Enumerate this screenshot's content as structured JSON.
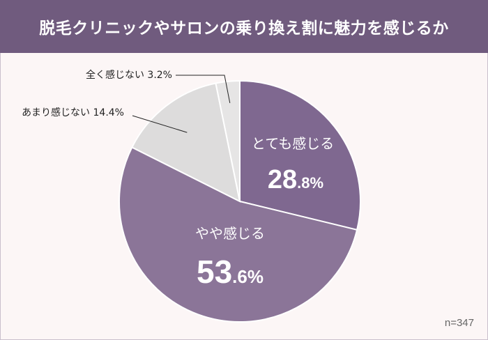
{
  "chart_data": {
    "type": "pie",
    "title": "脱毛クリニックやサロンの乗り換え割に魅力を感じるか",
    "slices": [
      {
        "label": "とても感じる",
        "value": 28.8,
        "int_part": "28",
        "dec_part": ".8%",
        "color": "#7f6890",
        "label_color": "#ffffff",
        "text": "28.8%"
      },
      {
        "label": "やや感じる",
        "value": 53.6,
        "int_part": "53",
        "dec_part": ".6%",
        "color": "#8b7598",
        "label_color": "#ffffff",
        "text": "53.6%"
      },
      {
        "label": "あまり感じない",
        "value": 14.4,
        "color": "#dddcdc",
        "label_color": "#222222",
        "text": "あまり感じない 14.4%"
      },
      {
        "label": "全く感じない",
        "value": 3.2,
        "color": "#e6e5e5",
        "label_color": "#222222",
        "text": "全く感じない 3.2%"
      }
    ],
    "sample_size": "n=347"
  },
  "colors": {
    "header_bg": "#705b7e",
    "background": "#fcf6f6"
  }
}
